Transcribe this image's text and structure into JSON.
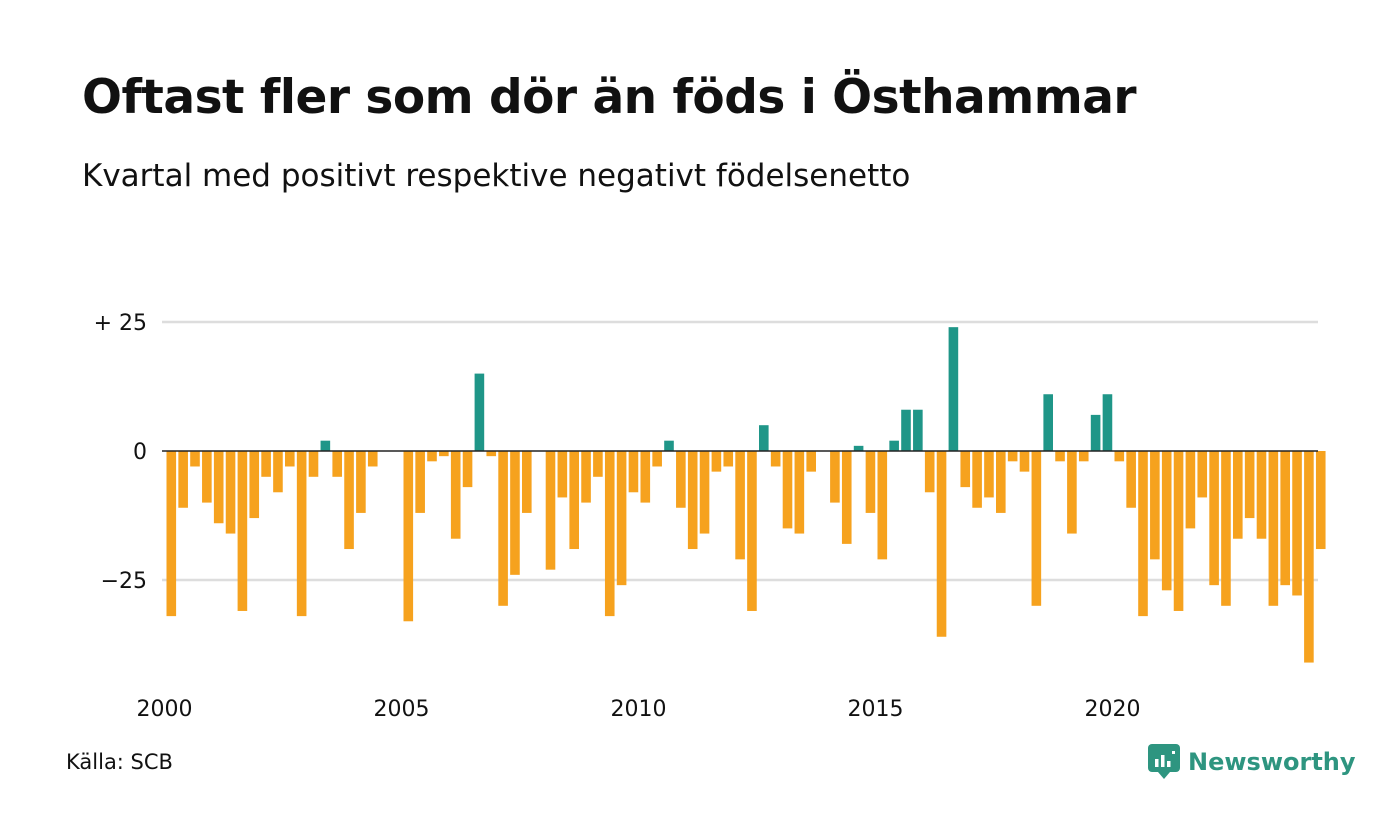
{
  "title": "Oftast fler som dör än föds i Östhammar",
  "subtitle": "Kvartal med positivt respektive negativt födelsenetto",
  "source": "Källa: SCB",
  "logo": {
    "name": "Newsworthy",
    "icon": "newsworthy-logo-icon"
  },
  "colors": {
    "positive": "#1f9688",
    "negative": "#f6a21e",
    "grid": "#dddddd",
    "zero": "#222222"
  },
  "chart_data": {
    "type": "bar",
    "x_start": "2000 Q1",
    "yticks": [
      25,
      0,
      -25
    ],
    "ytick_labels": [
      "+ 25",
      "0",
      "−25"
    ],
    "xtick_labels": [
      "2000",
      "2005",
      "2010",
      "2015",
      "2020"
    ],
    "ylim": [
      -45,
      30
    ],
    "grid": true,
    "values": [
      -32,
      -11,
      -3,
      -10,
      -14,
      -16,
      -31,
      -13,
      -5,
      -8,
      -3,
      -32,
      -5,
      2,
      -5,
      -19,
      -12,
      -3,
      0,
      0,
      -33,
      -12,
      -2,
      -1,
      -17,
      -7,
      15,
      -1,
      -30,
      -24,
      -12,
      0,
      -23,
      -9,
      -19,
      -10,
      -5,
      -32,
      -26,
      -8,
      -10,
      -3,
      2,
      -11,
      -19,
      -16,
      -4,
      -3,
      -21,
      -31,
      5,
      -3,
      -15,
      -16,
      -4,
      0,
      -10,
      -18,
      1,
      -12,
      -21,
      2,
      8,
      8,
      -8,
      -36,
      24,
      -7,
      -11,
      -9,
      -12,
      -2,
      -4,
      -30,
      11,
      -2,
      -16,
      -2,
      7,
      11,
      -2,
      -11,
      -32,
      -21,
      -27,
      -31,
      -15,
      -9,
      -26,
      -30,
      -17,
      -13,
      -17,
      -30,
      -26,
      -28,
      -41,
      -19
    ]
  }
}
